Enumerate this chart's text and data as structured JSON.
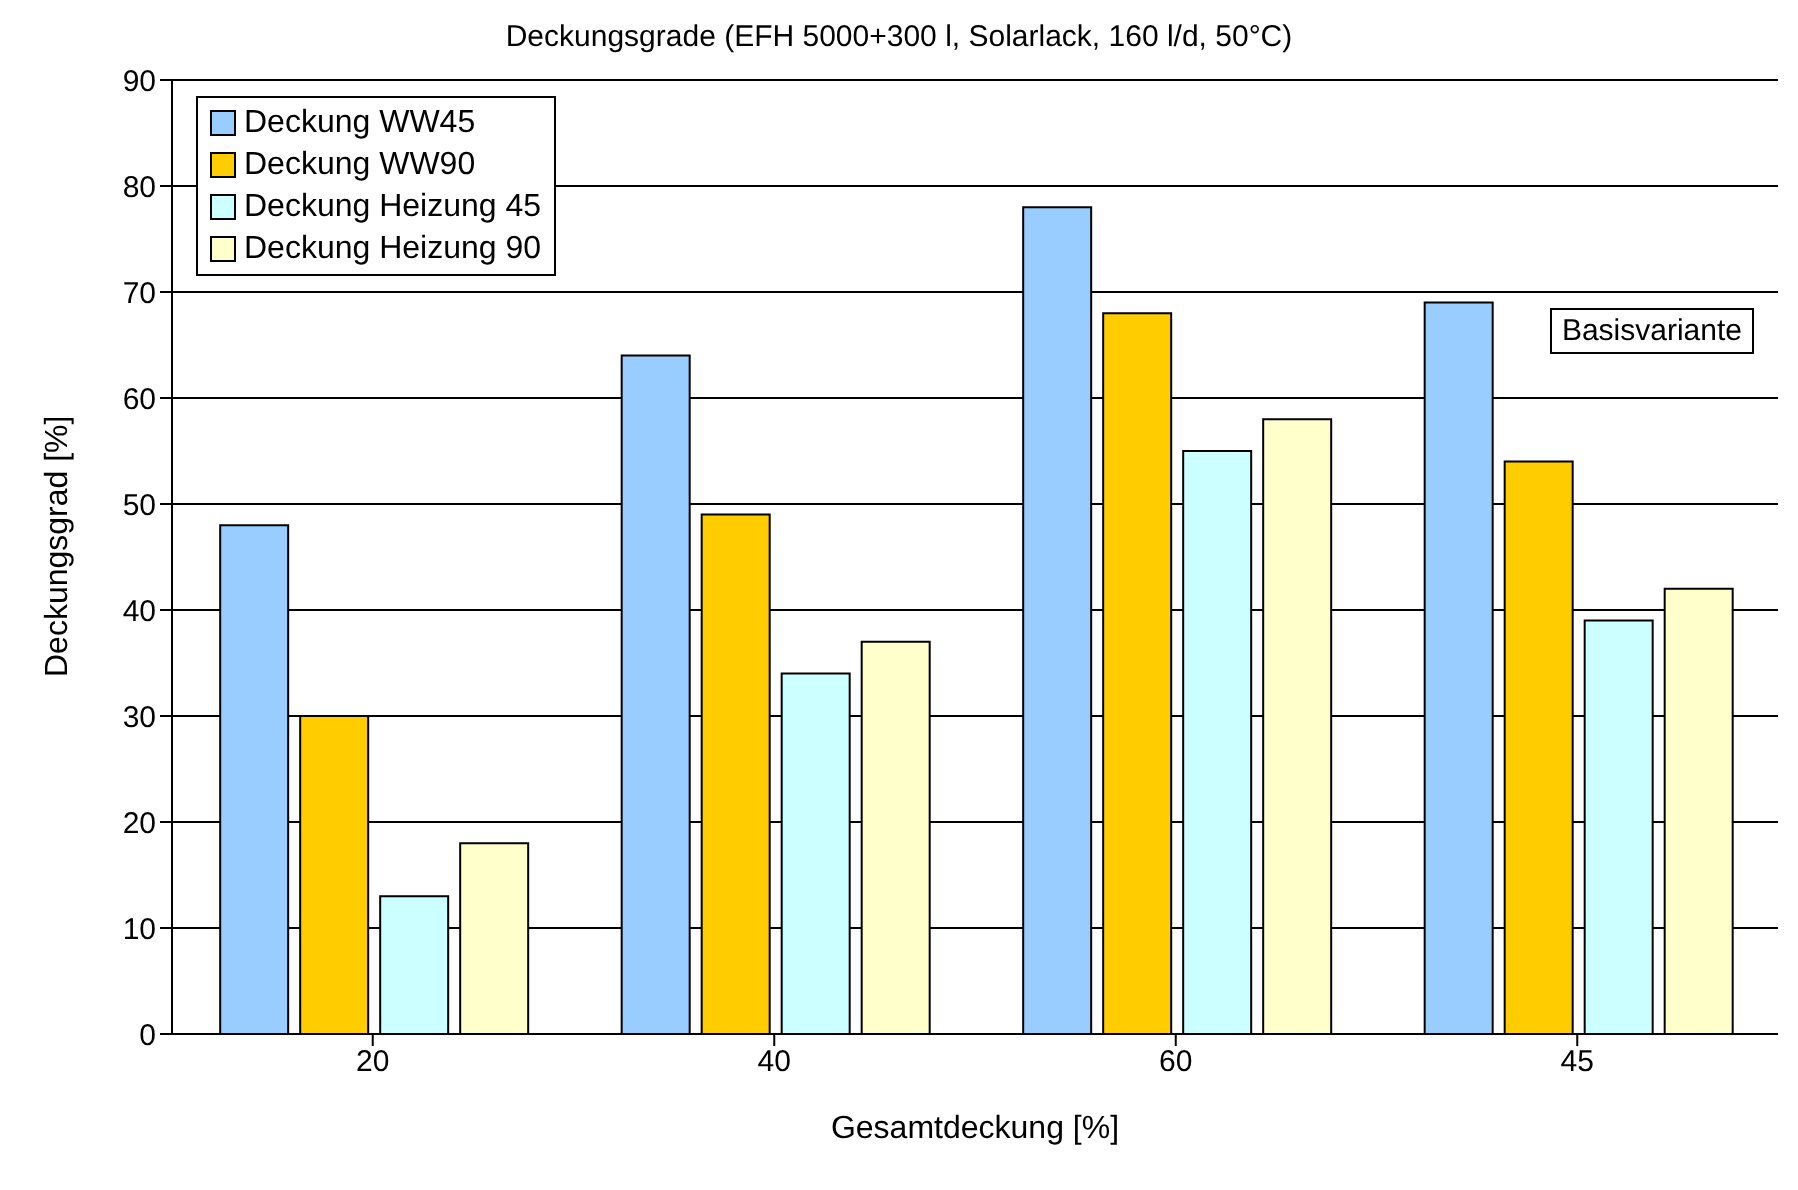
{
  "chart_data": {
    "type": "bar",
    "title": "Deckungsgrade (EFH 5000+300 l, Solarlack, 160 l/d, 50°C)",
    "xlabel": "Gesamtdeckung [%]",
    "ylabel": "Deckungsgrad [%]",
    "categories": [
      "20",
      "40",
      "60",
      "45"
    ],
    "series": [
      {
        "name": "Deckung WW45",
        "color": "#99ccff",
        "values": [
          48,
          64,
          78,
          69
        ]
      },
      {
        "name": "Deckung WW90",
        "color": "#ffcc00",
        "values": [
          30,
          49,
          68,
          54
        ]
      },
      {
        "name": "Deckung Heizung 45",
        "color": "#ccffff",
        "values": [
          13,
          34,
          55,
          39
        ]
      },
      {
        "name": "Deckung Heizung 90",
        "color": "#ffffcc",
        "values": [
          18,
          37,
          58,
          42
        ]
      }
    ],
    "ylim": [
      0,
      90
    ],
    "yticks": [
      0,
      10,
      20,
      30,
      40,
      50,
      60,
      70,
      80,
      90
    ],
    "grid": "y",
    "legend": "top left",
    "annotations": [
      "Basisvariante"
    ]
  }
}
